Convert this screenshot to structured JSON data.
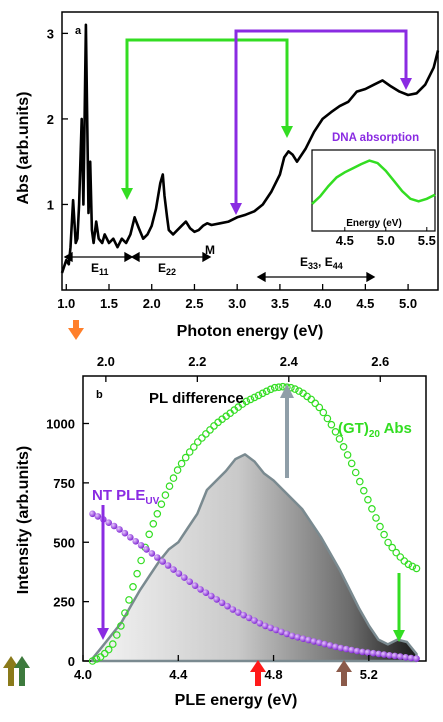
{
  "colors": {
    "green": "#33dd22",
    "purple": "#8a2be2",
    "orange": "#ff7f2a",
    "red": "#ff1a1a",
    "brown": "#8b5a4a",
    "olive": "#8a7a1a",
    "dark_green": "#3d7a3d",
    "gray_arrow": "#8f9ea8"
  },
  "chart_data": [
    {
      "panel": "a",
      "type": "line",
      "xlabel": "Photon energy (eV)",
      "ylabel": "Abs (arb.units)",
      "xlim": [
        0.95,
        5.35
      ],
      "ylim": [
        0,
        3.25
      ],
      "xticks": [
        "1.0",
        "1.5",
        "2.0",
        "2.5",
        "3.0",
        "3.5",
        "4.0",
        "4.5",
        "5.0"
      ],
      "yticks": [
        "1",
        "2",
        "3"
      ],
      "series": [
        {
          "x": [
            0.95,
            1.0,
            1.03,
            1.05,
            1.08,
            1.11,
            1.13,
            1.15,
            1.18,
            1.2,
            1.23,
            1.26,
            1.28,
            1.3,
            1.32,
            1.35,
            1.38,
            1.42,
            1.45,
            1.5,
            1.55,
            1.6,
            1.65,
            1.7,
            1.75,
            1.8,
            1.85,
            1.9,
            1.95,
            2.0,
            2.05,
            2.1,
            2.13,
            2.15,
            2.18,
            2.2,
            2.25,
            2.3,
            2.35,
            2.4,
            2.45,
            2.5,
            2.55,
            2.6,
            2.65,
            2.7,
            2.8,
            2.9,
            3.0,
            3.1,
            3.2,
            3.3,
            3.4,
            3.5,
            3.55,
            3.6,
            3.65,
            3.7,
            3.8,
            3.9,
            4.0,
            4.1,
            4.2,
            4.3,
            4.4,
            4.5,
            4.6,
            4.7,
            4.8,
            4.9,
            5.0,
            5.1,
            5.2,
            5.3,
            5.35
          ],
          "y": [
            0.2,
            0.35,
            0.3,
            0.5,
            1.05,
            0.55,
            0.6,
            1.0,
            2.0,
            1.0,
            3.1,
            0.9,
            1.5,
            0.7,
            0.55,
            0.8,
            0.6,
            0.55,
            0.65,
            0.55,
            0.6,
            0.5,
            0.6,
            0.55,
            0.65,
            0.85,
            0.72,
            0.6,
            0.65,
            0.75,
            0.95,
            1.25,
            1.35,
            1.1,
            0.85,
            0.7,
            0.65,
            0.7,
            0.75,
            0.8,
            0.72,
            0.68,
            0.7,
            0.75,
            0.78,
            0.76,
            0.78,
            0.8,
            0.85,
            0.88,
            0.92,
            1.0,
            1.15,
            1.35,
            1.55,
            1.62,
            1.58,
            1.5,
            1.65,
            1.85,
            2.0,
            2.08,
            2.15,
            2.2,
            2.32,
            2.35,
            2.4,
            2.45,
            2.38,
            2.32,
            2.28,
            2.3,
            2.4,
            2.6,
            2.8
          ]
        }
      ],
      "annotations": [
        "a",
        "E11",
        "E22",
        "M",
        "E33, E44",
        "DNA absorption"
      ],
      "inset": {
        "xlabel": "Energy (eV)",
        "xlim": [
          4.1,
          5.6
        ],
        "xticks": [
          "4.5",
          "5.0",
          "5.5"
        ],
        "x": [
          4.1,
          4.2,
          4.3,
          4.4,
          4.5,
          4.6,
          4.7,
          4.8,
          4.9,
          5.0,
          5.1,
          5.2,
          5.3,
          5.4,
          5.5,
          5.6
        ],
        "y": [
          0.1,
          0.25,
          0.45,
          0.62,
          0.72,
          0.8,
          0.88,
          0.95,
          0.9,
          0.75,
          0.55,
          0.35,
          0.2,
          0.15,
          0.2,
          0.28
        ]
      }
    },
    {
      "panel": "b",
      "type": "area",
      "xlabel": "PLE energy (eV)",
      "ylabel": "Intensity (arb.units)",
      "xlim": [
        4.0,
        5.44
      ],
      "ylim": [
        0,
        1200
      ],
      "xticks": [
        "4.0",
        "4.4",
        "4.8",
        "5.2"
      ],
      "top_xlim": [
        1.95,
        2.7
      ],
      "top_xticks": [
        "2.0",
        "2.2",
        "2.4",
        "2.6"
      ],
      "yticks": [
        "0",
        "250",
        "500",
        "750",
        "1000"
      ],
      "annotations": [
        "b",
        "PL difference",
        "(GT)20 Abs",
        "NT PLEUV"
      ],
      "series": [
        {
          "key": "pl_difference",
          "x": [
            4.04,
            4.08,
            4.12,
            4.16,
            4.2,
            4.24,
            4.28,
            4.32,
            4.36,
            4.4,
            4.44,
            4.48,
            4.52,
            4.56,
            4.6,
            4.64,
            4.68,
            4.72,
            4.76,
            4.8,
            4.84,
            4.88,
            4.92,
            4.96,
            5.0,
            5.04,
            5.08,
            5.12,
            5.16,
            5.2,
            5.24,
            5.28,
            5.32,
            5.36,
            5.4
          ],
          "y": [
            10,
            60,
            110,
            160,
            230,
            300,
            360,
            420,
            470,
            500,
            560,
            620,
            720,
            760,
            800,
            850,
            870,
            840,
            790,
            760,
            720,
            680,
            640,
            580,
            520,
            450,
            380,
            300,
            220,
            150,
            90,
            70,
            90,
            80,
            30
          ]
        },
        {
          "key": "gt20_abs",
          "x": [
            4.04,
            4.08,
            4.12,
            4.16,
            4.2,
            4.24,
            4.28,
            4.32,
            4.36,
            4.4,
            4.44,
            4.48,
            4.52,
            4.56,
            4.6,
            4.64,
            4.68,
            4.72,
            4.76,
            4.8,
            4.84,
            4.88,
            4.92,
            4.96,
            5.0,
            5.04,
            5.08,
            5.12,
            5.16,
            5.2,
            5.24,
            5.28,
            5.32,
            5.36,
            5.4
          ],
          "y": [
            0,
            20,
            60,
            150,
            280,
            410,
            540,
            640,
            730,
            810,
            870,
            920,
            960,
            1000,
            1030,
            1060,
            1090,
            1110,
            1130,
            1150,
            1155,
            1150,
            1130,
            1100,
            1060,
            1000,
            930,
            850,
            760,
            670,
            580,
            500,
            450,
            410,
            390
          ]
        },
        {
          "key": "nt_ple_uv",
          "x": [
            4.04,
            4.08,
            4.12,
            4.16,
            4.2,
            4.24,
            4.28,
            4.32,
            4.36,
            4.4,
            4.44,
            4.48,
            4.52,
            4.56,
            4.6,
            4.64,
            4.68,
            4.72,
            4.76,
            4.8,
            4.84,
            4.88,
            4.92,
            4.96,
            5.0,
            5.04,
            5.08,
            5.12,
            5.16,
            5.2,
            5.24,
            5.28,
            5.32,
            5.36,
            5.4
          ],
          "y": [
            620,
            600,
            575,
            550,
            520,
            490,
            460,
            430,
            400,
            370,
            340,
            310,
            285,
            260,
            235,
            210,
            190,
            170,
            150,
            135,
            120,
            105,
            95,
            85,
            75,
            65,
            55,
            48,
            40,
            35,
            30,
            25,
            20,
            15,
            10
          ]
        }
      ]
    }
  ]
}
